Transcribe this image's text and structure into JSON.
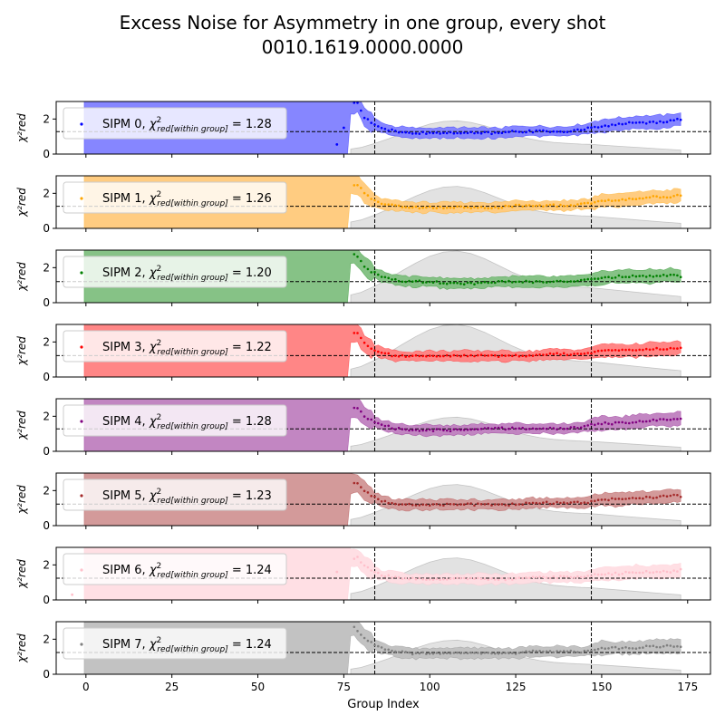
{
  "figure": {
    "title_line1": "Excess Noise for Asymmetry in one group, every shot",
    "title_line2": "0010.1619.0000.0000"
  },
  "chart_data": {
    "type": "line",
    "xlabel": "Group Index",
    "ylabel": "χ²red",
    "xlim": [
      -8.65,
      181.65
    ],
    "ylim": [
      0,
      3
    ],
    "x_ticks": [
      0,
      25,
      50,
      75,
      100,
      125,
      150,
      175
    ],
    "y_ticks": [
      0,
      2
    ],
    "vertical_lines": [
      84,
      147
    ],
    "legend_location": "upper left",
    "legend_prefix": "SIPM",
    "legend_subscript_label": "red[within group]",
    "background_profile": {
      "x": [
        77,
        80,
        84,
        88,
        92,
        96,
        100,
        104,
        108,
        112,
        116,
        120,
        124,
        128,
        132,
        136,
        140,
        144,
        147,
        150,
        156,
        162,
        168,
        173
      ],
      "y_scale": [
        0.15,
        0.2,
        0.32,
        0.46,
        0.62,
        0.77,
        0.9,
        0.98,
        1.0,
        0.95,
        0.85,
        0.72,
        0.59,
        0.48,
        0.4,
        0.35,
        0.32,
        0.3,
        0.29,
        0.27,
        0.23,
        0.19,
        0.15,
        0.12
      ],
      "peaks": [
        1.9,
        2.4,
        2.95,
        3.0,
        1.95,
        2.35,
        2.4,
        1.95
      ]
    },
    "series": [
      {
        "name": "SIPM 0",
        "chi2": "1.28",
        "ref_line": 1.28,
        "color": "#0000ff",
        "band_color": "#8080ff",
        "early_points": [
          [
            73,
            0.55
          ],
          [
            75,
            1.5
          ]
        ],
        "points": [
          [
            79,
            2.9
          ],
          [
            81,
            2.1
          ],
          [
            83,
            1.8
          ],
          [
            86,
            1.5
          ],
          [
            90,
            1.3
          ],
          [
            95,
            1.2
          ],
          [
            100,
            1.2
          ],
          [
            105,
            1.2
          ],
          [
            110,
            1.2
          ],
          [
            115,
            1.2
          ],
          [
            120,
            1.2
          ],
          [
            125,
            1.3
          ],
          [
            130,
            1.3
          ],
          [
            135,
            1.3
          ],
          [
            140,
            1.3
          ],
          [
            145,
            1.4
          ],
          [
            147,
            1.5
          ],
          [
            150,
            1.6
          ],
          [
            155,
            1.7
          ],
          [
            160,
            1.8
          ],
          [
            165,
            1.8
          ],
          [
            170,
            1.9
          ],
          [
            173,
            2.0
          ]
        ]
      },
      {
        "name": "SIPM 1",
        "chi2": "1.26",
        "ref_line": 1.26,
        "color": "#ffa500",
        "band_color": "#ffc97a",
        "early_points": [],
        "points": [
          [
            79,
            2.5
          ],
          [
            81,
            2.0
          ],
          [
            83,
            1.7
          ],
          [
            86,
            1.4
          ],
          [
            90,
            1.3
          ],
          [
            95,
            1.2
          ],
          [
            100,
            1.2
          ],
          [
            105,
            1.2
          ],
          [
            110,
            1.2
          ],
          [
            115,
            1.2
          ],
          [
            120,
            1.2
          ],
          [
            125,
            1.3
          ],
          [
            130,
            1.3
          ],
          [
            135,
            1.3
          ],
          [
            140,
            1.3
          ],
          [
            145,
            1.4
          ],
          [
            147,
            1.4
          ],
          [
            150,
            1.6
          ],
          [
            155,
            1.6
          ],
          [
            160,
            1.7
          ],
          [
            165,
            1.8
          ],
          [
            170,
            1.8
          ],
          [
            173,
            1.9
          ]
        ]
      },
      {
        "name": "SIPM 2",
        "chi2": "1.20",
        "ref_line": 1.2,
        "color": "#008000",
        "band_color": "#7fbf7f",
        "early_points": [],
        "points": [
          [
            78,
            2.8
          ],
          [
            81,
            2.1
          ],
          [
            83,
            1.8
          ],
          [
            86,
            1.5
          ],
          [
            90,
            1.3
          ],
          [
            95,
            1.2
          ],
          [
            100,
            1.2
          ],
          [
            105,
            1.1
          ],
          [
            110,
            1.1
          ],
          [
            115,
            1.1
          ],
          [
            120,
            1.2
          ],
          [
            125,
            1.2
          ],
          [
            130,
            1.2
          ],
          [
            135,
            1.2
          ],
          [
            140,
            1.2
          ],
          [
            145,
            1.3
          ],
          [
            147,
            1.3
          ],
          [
            150,
            1.4
          ],
          [
            155,
            1.5
          ],
          [
            160,
            1.5
          ],
          [
            165,
            1.5
          ],
          [
            170,
            1.6
          ],
          [
            173,
            1.5
          ]
        ]
      },
      {
        "name": "SIPM 3",
        "chi2": "1.22",
        "ref_line": 1.22,
        "color": "#ff0000",
        "band_color": "#ff8080",
        "early_points": [],
        "points": [
          [
            79,
            2.5
          ],
          [
            81,
            1.9
          ],
          [
            83,
            1.6
          ],
          [
            86,
            1.4
          ],
          [
            90,
            1.2
          ],
          [
            95,
            1.2
          ],
          [
            100,
            1.2
          ],
          [
            105,
            1.2
          ],
          [
            110,
            1.2
          ],
          [
            115,
            1.2
          ],
          [
            120,
            1.2
          ],
          [
            125,
            1.2
          ],
          [
            130,
            1.2
          ],
          [
            135,
            1.3
          ],
          [
            140,
            1.3
          ],
          [
            145,
            1.3
          ],
          [
            147,
            1.4
          ],
          [
            150,
            1.5
          ],
          [
            155,
            1.5
          ],
          [
            160,
            1.5
          ],
          [
            165,
            1.6
          ],
          [
            170,
            1.6
          ],
          [
            173,
            1.7
          ]
        ]
      },
      {
        "name": "SIPM 4",
        "chi2": "1.28",
        "ref_line": 1.28,
        "color": "#800080",
        "band_color": "#bf7fbf",
        "early_points": [],
        "points": [
          [
            79,
            2.5
          ],
          [
            81,
            2.0
          ],
          [
            83,
            1.8
          ],
          [
            86,
            1.5
          ],
          [
            90,
            1.3
          ],
          [
            95,
            1.2
          ],
          [
            100,
            1.2
          ],
          [
            105,
            1.2
          ],
          [
            110,
            1.2
          ],
          [
            115,
            1.3
          ],
          [
            120,
            1.3
          ],
          [
            125,
            1.3
          ],
          [
            130,
            1.3
          ],
          [
            135,
            1.3
          ],
          [
            140,
            1.3
          ],
          [
            145,
            1.4
          ],
          [
            147,
            1.5
          ],
          [
            150,
            1.6
          ],
          [
            155,
            1.6
          ],
          [
            160,
            1.7
          ],
          [
            165,
            1.8
          ],
          [
            170,
            1.8
          ],
          [
            173,
            1.9
          ]
        ]
      },
      {
        "name": "SIPM 5",
        "chi2": "1.23",
        "ref_line": 1.23,
        "color": "#a52a2a",
        "band_color": "#d19595",
        "early_points": [],
        "points": [
          [
            79,
            2.4
          ],
          [
            81,
            2.0
          ],
          [
            83,
            1.7
          ],
          [
            86,
            1.4
          ],
          [
            90,
            1.2
          ],
          [
            95,
            1.2
          ],
          [
            100,
            1.2
          ],
          [
            105,
            1.2
          ],
          [
            110,
            1.2
          ],
          [
            115,
            1.2
          ],
          [
            120,
            1.2
          ],
          [
            125,
            1.2
          ],
          [
            130,
            1.3
          ],
          [
            135,
            1.3
          ],
          [
            140,
            1.3
          ],
          [
            145,
            1.3
          ],
          [
            147,
            1.4
          ],
          [
            150,
            1.5
          ],
          [
            155,
            1.5
          ],
          [
            160,
            1.6
          ],
          [
            165,
            1.6
          ],
          [
            170,
            1.7
          ],
          [
            173,
            1.7
          ]
        ]
      },
      {
        "name": "SIPM 6",
        "chi2": "1.24",
        "ref_line": 1.24,
        "color": "#ffc0cb",
        "band_color": "#ffdde3",
        "early_points": [
          [
            -4,
            0.3
          ],
          [
            73,
            1.6
          ]
        ],
        "points": [
          [
            79,
            2.4
          ],
          [
            81,
            2.0
          ],
          [
            83,
            1.7
          ],
          [
            86,
            1.4
          ],
          [
            90,
            1.3
          ],
          [
            95,
            1.2
          ],
          [
            100,
            1.2
          ],
          [
            105,
            1.2
          ],
          [
            110,
            1.2
          ],
          [
            115,
            1.2
          ],
          [
            120,
            1.2
          ],
          [
            125,
            1.2
          ],
          [
            130,
            1.3
          ],
          [
            135,
            1.3
          ],
          [
            140,
            1.3
          ],
          [
            145,
            1.3
          ],
          [
            147,
            1.4
          ],
          [
            150,
            1.5
          ],
          [
            155,
            1.5
          ],
          [
            160,
            1.6
          ],
          [
            165,
            1.6
          ],
          [
            170,
            1.6
          ],
          [
            173,
            1.7
          ]
        ]
      },
      {
        "name": "SIPM 7",
        "chi2": "1.24",
        "ref_line": 1.24,
        "color": "#808080",
        "band_color": "#bfbfbf",
        "early_points": [],
        "points": [
          [
            78,
            2.7
          ],
          [
            81,
            2.1
          ],
          [
            83,
            1.8
          ],
          [
            86,
            1.5
          ],
          [
            90,
            1.3
          ],
          [
            95,
            1.2
          ],
          [
            100,
            1.2
          ],
          [
            105,
            1.2
          ],
          [
            110,
            1.2
          ],
          [
            115,
            1.2
          ],
          [
            120,
            1.2
          ],
          [
            125,
            1.2
          ],
          [
            130,
            1.3
          ],
          [
            135,
            1.3
          ],
          [
            140,
            1.3
          ],
          [
            145,
            1.3
          ],
          [
            147,
            1.4
          ],
          [
            150,
            1.5
          ],
          [
            155,
            1.5
          ],
          [
            160,
            1.5
          ],
          [
            165,
            1.6
          ],
          [
            170,
            1.6
          ],
          [
            173,
            1.6
          ]
        ]
      }
    ]
  }
}
